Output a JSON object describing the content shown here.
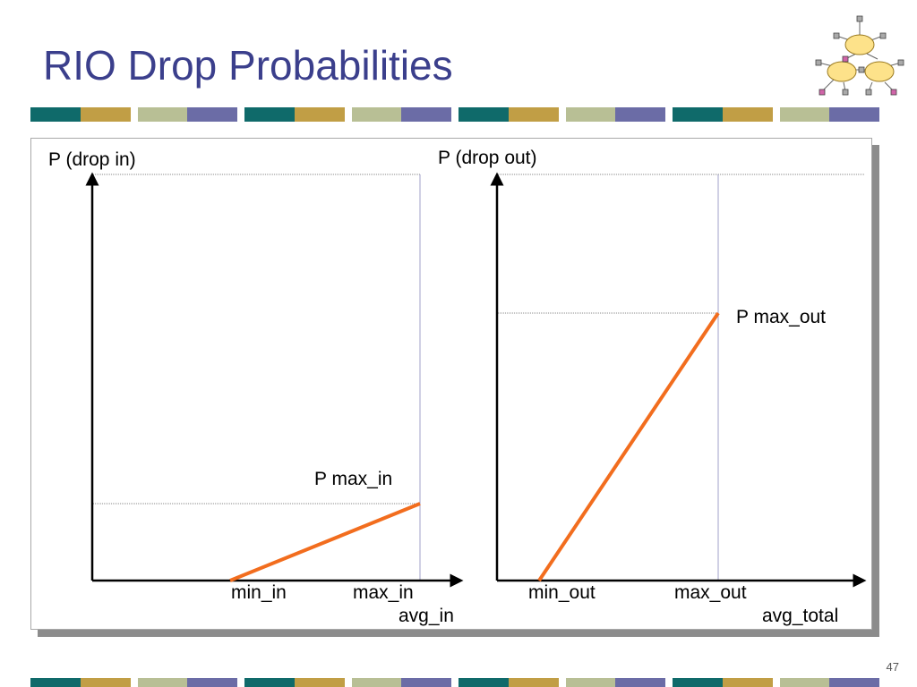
{
  "slide": {
    "title": "RIO Drop Probabilities",
    "page_number": "47"
  },
  "colors": {
    "title": "#3b3f8c",
    "curve": "#f26d1e",
    "stripe": [
      "#0f6a6a",
      "#c19e45",
      "#b8bf95",
      "#6b6ca6"
    ],
    "panel_shadow": "#8c8c8c",
    "guide_line": "#a0a0c8"
  },
  "left_graph": {
    "y_label": "P (drop in)",
    "x_label": "avg_in",
    "min_label": "min_in",
    "max_label": "max_in",
    "pmax_label": "P max_in"
  },
  "right_graph": {
    "y_label": "P (drop out)",
    "x_label": "avg_total",
    "min_label": "min_out",
    "max_label": "max_out",
    "pmax_label": "P max_out"
  },
  "logo": {
    "icon": "network-clouds-icon"
  }
}
